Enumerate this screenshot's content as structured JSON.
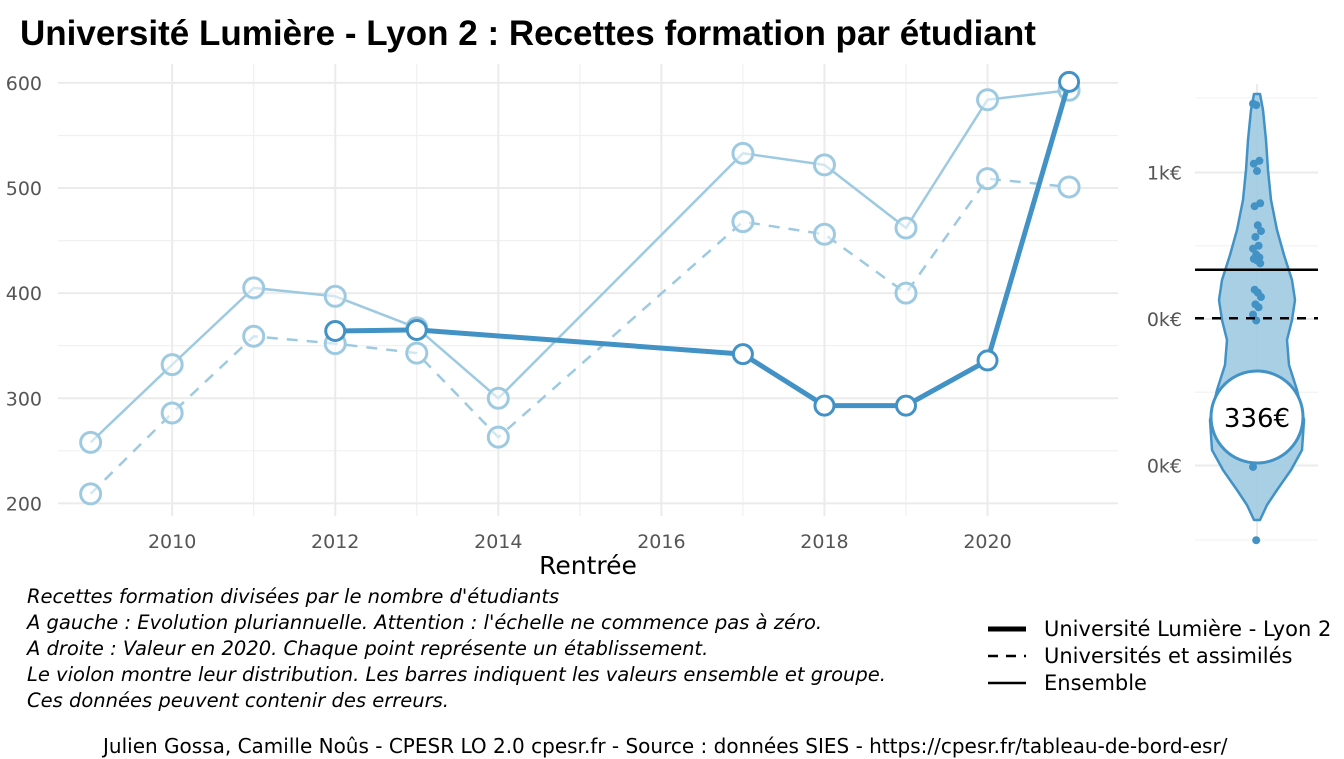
{
  "title": "Université Lumière - Lyon 2  :  Recettes formation par étudiant",
  "chart_data": [
    {
      "type": "line",
      "xlabel": "Rentrée",
      "ylabel": "",
      "xlim": [
        2008.6,
        2021.6
      ],
      "ylim": [
        188,
        618
      ],
      "x_ticks": [
        2010,
        2012,
        2014,
        2016,
        2018,
        2020
      ],
      "y_ticks": [
        200,
        300,
        400,
        500,
        600
      ],
      "grid": true,
      "series": [
        {
          "name": "Ensemble",
          "color": "#9ecae1",
          "style": "solid",
          "x": [
            2009,
            2010,
            2011,
            2012,
            2013,
            2014,
            2017,
            2018,
            2019,
            2020,
            2021
          ],
          "y": [
            258,
            332,
            405,
            397,
            367,
            300,
            533,
            522,
            462,
            584,
            593
          ]
        },
        {
          "name": "Universités et assimilés",
          "color": "#9ecae1",
          "style": "dashed",
          "x": [
            2009,
            2010,
            2011,
            2012,
            2013,
            2014,
            2017,
            2018,
            2019,
            2020,
            2021
          ],
          "y": [
            209,
            286,
            359,
            352,
            343,
            263,
            468,
            456,
            400,
            509,
            501
          ]
        },
        {
          "name": "Université Lumière - Lyon 2",
          "color": "#4292c6",
          "style": "solid-bold",
          "x": [
            2012,
            2013,
            2017,
            2018,
            2019,
            2020,
            2021
          ],
          "y": [
            364,
            365,
            342,
            293,
            293,
            336,
            601
          ]
        }
      ]
    },
    {
      "type": "violin",
      "color": "#4292c6",
      "fill": "#9ecae1",
      "y_ticks": [
        "1k€",
        "0k€",
        "0k€"
      ],
      "label": "336€",
      "points": [
        1470,
        1460,
        1080,
        1060,
        1010,
        790,
        770,
        640,
        600,
        560,
        500,
        480,
        440,
        420,
        410,
        400,
        380,
        200,
        180,
        150,
        100,
        80,
        30,
        -10,
        -450,
        -460,
        -560,
        -570,
        -580,
        -640,
        -680,
        -690,
        -940,
        -1010,
        -1510
      ],
      "ensemble": 336,
      "group": 5
    }
  ],
  "notes": [
    "Recettes formation divisées par le nombre d'étudiants",
    "A gauche : Evolution pluriannuelle. Attention : l'échelle ne commence pas à zéro.",
    "A droite : Valeur en 2020. Chaque point représente un établissement.",
    "Le violon montre leur distribution. Les barres indiquent les valeurs ensemble et groupe.",
    "Ces données peuvent contenir des erreurs."
  ],
  "legend": [
    {
      "label": "Université Lumière - Lyon 2",
      "style": "solid-bold"
    },
    {
      "label": "Universités et assimilés",
      "style": "dashed"
    },
    {
      "label": "Ensemble",
      "style": "solid"
    }
  ],
  "caption": "Julien Gossa, Camille Noûs - CPESR LO 2.0 cpesr.fr - Source : données SIES - https://cpesr.fr/tableau-de-bord-esr/"
}
